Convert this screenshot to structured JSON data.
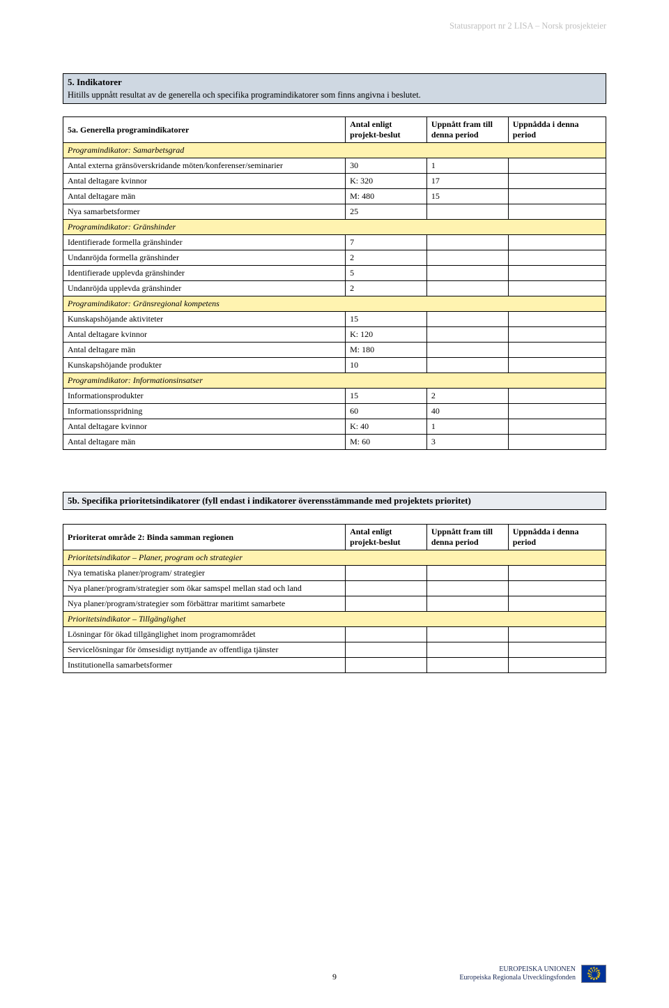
{
  "header": {
    "text": "Statusrapport nr 2 LISA – Norsk prosjekteier"
  },
  "section5": {
    "title": "5. Indikatorer",
    "sub": "Hitills uppnått resultat av de generella och specifika programindikatorer som finns angivna i beslutet."
  },
  "table5a": {
    "title": "5a. Generella programindikatorer",
    "headers": {
      "h1": "Antal enligt projekt-beslut",
      "h2": "Uppnått fram till denna period",
      "h3": "Uppnådda i denna period"
    },
    "rows": [
      {
        "type": "sub",
        "label": "Programindikator: Samarbetsgrad"
      },
      {
        "type": "data",
        "label": "Antal externa gränsöverskridande möten/konferenser/seminarier",
        "v1": "30",
        "v2": "1",
        "v3": ""
      },
      {
        "type": "data",
        "label": "Antal deltagare kvinnor",
        "v1": "K: 320",
        "v2": "17",
        "v3": ""
      },
      {
        "type": "data",
        "label": "Antal deltagare män",
        "v1": "M: 480",
        "v2": "15",
        "v3": ""
      },
      {
        "type": "data",
        "label": "Nya samarbetsformer",
        "v1": "25",
        "v2": "",
        "v3": ""
      },
      {
        "type": "sub",
        "label": "Programindikator: Gränshinder"
      },
      {
        "type": "data",
        "label": "Identifierade formella gränshinder",
        "v1": "7",
        "v2": "",
        "v3": ""
      },
      {
        "type": "data",
        "label": "Undanröjda formella gränshinder",
        "v1": "2",
        "v2": "",
        "v3": ""
      },
      {
        "type": "data",
        "label": "Identifierade upplevda gränshinder",
        "v1": "5",
        "v2": "",
        "v3": ""
      },
      {
        "type": "data",
        "label": "Undanröjda upplevda gränshinder",
        "v1": "2",
        "v2": "",
        "v3": ""
      },
      {
        "type": "sub",
        "label": "Programindikator: Gränsregional kompetens"
      },
      {
        "type": "data",
        "label": "Kunskapshöjande aktiviteter",
        "v1": "15",
        "v2": "",
        "v3": ""
      },
      {
        "type": "data",
        "label": "Antal deltagare kvinnor",
        "v1": "K: 120",
        "v2": "",
        "v3": ""
      },
      {
        "type": "data",
        "label": "Antal deltagare män",
        "v1": "M: 180",
        "v2": "",
        "v3": ""
      },
      {
        "type": "data",
        "label": "Kunskapshöjande produkter",
        "v1": "10",
        "v2": "",
        "v3": ""
      },
      {
        "type": "sub",
        "label": "Programindikator: Informationsinsatser"
      },
      {
        "type": "data",
        "label": "Informationsprodukter",
        "v1": "15",
        "v2": "2",
        "v3": ""
      },
      {
        "type": "data",
        "label": "Informationsspridning",
        "v1": "60",
        "v2": "40",
        "v3": ""
      },
      {
        "type": "data",
        "label": "Antal deltagare kvinnor",
        "v1": "K: 40",
        "v2": "1",
        "v3": ""
      },
      {
        "type": "data",
        "label": "Antal deltagare män",
        "v1": "M: 60",
        "v2": "3",
        "v3": ""
      }
    ]
  },
  "section5b": {
    "title": "5b. Specifika prioritetsindikatorer (fyll endast i indikatorer överensstämmande med projektets prioritet)"
  },
  "table5b": {
    "title": "Prioriterat område 2: Binda samman regionen",
    "headers": {
      "h1": "Antal enligt projekt-beslut",
      "h2": "Uppnått fram till denna period",
      "h3": "Uppnådda i denna period"
    },
    "rows": [
      {
        "type": "sub",
        "label": "Prioritetsindikator – Planer, program och strategier"
      },
      {
        "type": "data",
        "label": "Nya tematiska planer/program/ strategier",
        "v1": "",
        "v2": "",
        "v3": ""
      },
      {
        "type": "data",
        "label": "Nya planer/program/strategier som ökar samspel mellan stad och land",
        "v1": "",
        "v2": "",
        "v3": ""
      },
      {
        "type": "data",
        "label": "Nya planer/program/strategier som förbättrar maritimt samarbete",
        "v1": "",
        "v2": "",
        "v3": ""
      },
      {
        "type": "sub",
        "label": "Prioritetsindikator – Tillgänglighet"
      },
      {
        "type": "data",
        "label": "Lösningar för ökad tillgänglighet inom programområdet",
        "v1": "",
        "v2": "",
        "v3": ""
      },
      {
        "type": "data",
        "label": "Servicelösningar för ömsesidigt nyttjande av offentliga tjänster",
        "v1": "",
        "v2": "",
        "v3": ""
      },
      {
        "type": "data",
        "label": "Institutionella samarbetsformer",
        "v1": "",
        "v2": "",
        "v3": ""
      }
    ]
  },
  "footer": {
    "page": "9",
    "line1": "EUROPEISKA UNIONEN",
    "line2": "Europeiska Regionala Utvecklingsfonden"
  }
}
